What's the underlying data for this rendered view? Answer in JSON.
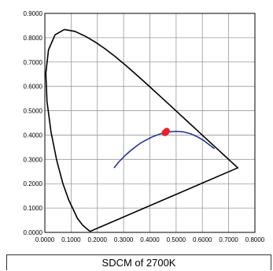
{
  "chart_data": {
    "type": "scatter",
    "title": "",
    "xlabel": "",
    "ylabel": "",
    "xlim": [
      0,
      0.8
    ],
    "ylim": [
      0,
      0.9
    ],
    "grid": true,
    "x_ticks": [
      "0.0000",
      "0.1000",
      "0.2000",
      "0.3000",
      "0.4000",
      "0.5000",
      "0.6000",
      "0.7000",
      "0.8000"
    ],
    "y_ticks": [
      "0.0000",
      "0.1000",
      "0.2000",
      "0.3000",
      "0.4000",
      "0.5000",
      "0.6000",
      "0.7000",
      "0.8000",
      "0.9000"
    ],
    "spectral_locus": {
      "x": [
        0.1741,
        0.174,
        0.1738,
        0.1733,
        0.1726,
        0.1714,
        0.1689,
        0.1644,
        0.1566,
        0.144,
        0.1241,
        0.0913,
        0.0687,
        0.0454,
        0.0235,
        0.0082,
        0.0039,
        0.0139,
        0.0389,
        0.0743,
        0.1142,
        0.1547,
        0.1929,
        0.2296,
        0.2658,
        0.3016,
        0.3373,
        0.3731,
        0.4087,
        0.4441,
        0.4788,
        0.5125,
        0.5448,
        0.5752,
        0.6029,
        0.627,
        0.6482,
        0.6658,
        0.6801,
        0.6915,
        0.7006,
        0.7079,
        0.714,
        0.719,
        0.723,
        0.726,
        0.7283,
        0.73,
        0.7347
      ],
      "y": [
        0.005,
        0.005,
        0.0049,
        0.0048,
        0.0048,
        0.0051,
        0.0069,
        0.0109,
        0.0177,
        0.0297,
        0.0578,
        0.1327,
        0.2007,
        0.295,
        0.4127,
        0.5384,
        0.6548,
        0.7502,
        0.812,
        0.8338,
        0.8262,
        0.8059,
        0.7816,
        0.7543,
        0.7243,
        0.6923,
        0.6589,
        0.6245,
        0.5896,
        0.5547,
        0.5202,
        0.4866,
        0.4544,
        0.4242,
        0.3965,
        0.3725,
        0.3514,
        0.334,
        0.3197,
        0.3083,
        0.2993,
        0.292,
        0.2859,
        0.2809,
        0.277,
        0.274,
        0.2717,
        0.27,
        0.2653
      ]
    },
    "planckian_locus": {
      "x": [
        0.6459,
        0.6048,
        0.5857,
        0.5567,
        0.5267,
        0.499,
        0.477,
        0.4599,
        0.4369,
        0.408,
        0.3804,
        0.3625,
        0.3451,
        0.3221,
        0.3064,
        0.2952,
        0.2807,
        0.2637
      ],
      "y": [
        0.344,
        0.3778,
        0.3903,
        0.4048,
        0.4133,
        0.4152,
        0.4137,
        0.4106,
        0.4041,
        0.3918,
        0.3767,
        0.3656,
        0.3516,
        0.3318,
        0.3166,
        0.3048,
        0.2883,
        0.265
      ]
    },
    "points": [
      {
        "x": 0.4599,
        "y": 0.4106,
        "color": "#e8202a"
      },
      {
        "x": 0.464,
        "y": 0.416,
        "color": "#e8202a"
      },
      {
        "x": 0.457,
        "y": 0.409,
        "color": "#e8202a"
      },
      {
        "x": 0.4615,
        "y": 0.413,
        "color": "#e8202a"
      }
    ],
    "colors": {
      "locus": "#000000",
      "planckian": "#1f2a8c",
      "grid": "#999999",
      "point": "#e8202a"
    }
  },
  "caption": "SDCM of 2700K"
}
